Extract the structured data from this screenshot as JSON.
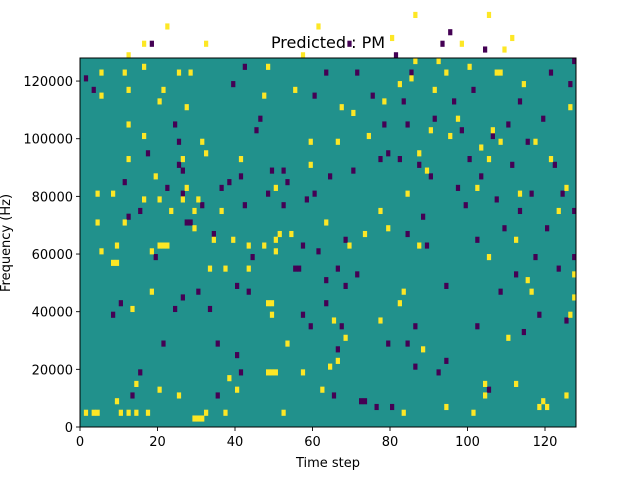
{
  "chart_data": {
    "type": "heatmap",
    "title": "Predicted : PM",
    "xlabel": "Time step",
    "ylabel": "Frequency (Hz)",
    "xlim": [
      0,
      128
    ],
    "ylim": [
      0,
      128000
    ],
    "xticks": [
      0,
      20,
      40,
      60,
      80,
      100,
      120
    ],
    "yticks": [
      0,
      20000,
      40000,
      60000,
      80000,
      100000,
      120000
    ],
    "n_time": 128,
    "n_freq": 64,
    "value_range": [
      -1,
      1
    ],
    "colors": {
      "background": "#21918c",
      "low": "#440154",
      "high": "#fde725"
    },
    "high_cells": [
      [
        1,
        2
      ],
      [
        3,
        2
      ],
      [
        4,
        2
      ],
      [
        4,
        35
      ],
      [
        4,
        40
      ],
      [
        5,
        30
      ],
      [
        5,
        57
      ],
      [
        5,
        61
      ],
      [
        8,
        28
      ],
      [
        8,
        40
      ],
      [
        9,
        4
      ],
      [
        9,
        28
      ],
      [
        9,
        31
      ],
      [
        10,
        2
      ],
      [
        11,
        35
      ],
      [
        11,
        61
      ],
      [
        12,
        2
      ],
      [
        12,
        46
      ],
      [
        12,
        52
      ],
      [
        12,
        58
      ],
      [
        12,
        64
      ],
      [
        13,
        20
      ],
      [
        14,
        7
      ],
      [
        14,
        2
      ],
      [
        16,
        39
      ],
      [
        16,
        50
      ],
      [
        16,
        62
      ],
      [
        16,
        66
      ],
      [
        17,
        2
      ],
      [
        18,
        23
      ],
      [
        18,
        30
      ],
      [
        19,
        43
      ],
      [
        20,
        6
      ],
      [
        20,
        31
      ],
      [
        20,
        39
      ],
      [
        20,
        56
      ],
      [
        21,
        31
      ],
      [
        21,
        58
      ],
      [
        22,
        31
      ],
      [
        22,
        69
      ],
      [
        23,
        37
      ],
      [
        25,
        61
      ],
      [
        25,
        5
      ],
      [
        26,
        46
      ],
      [
        26,
        39
      ],
      [
        27,
        41
      ],
      [
        27,
        55
      ],
      [
        28,
        61
      ],
      [
        29,
        34
      ],
      [
        29,
        37
      ],
      [
        29,
        1
      ],
      [
        30,
        1
      ],
      [
        30,
        39
      ],
      [
        31,
        1
      ],
      [
        31,
        49
      ],
      [
        32,
        2
      ],
      [
        32,
        47
      ],
      [
        32,
        66
      ],
      [
        33,
        27
      ],
      [
        34,
        32
      ],
      [
        36,
        37
      ],
      [
        37,
        27
      ],
      [
        37,
        2
      ],
      [
        38,
        8
      ],
      [
        39,
        32
      ],
      [
        40,
        6
      ],
      [
        41,
        46
      ],
      [
        43,
        27
      ],
      [
        43,
        31
      ],
      [
        47,
        31
      ],
      [
        47,
        57
      ],
      [
        48,
        9
      ],
      [
        48,
        21
      ],
      [
        48,
        62
      ],
      [
        49,
        9
      ],
      [
        49,
        19
      ],
      [
        49,
        21
      ],
      [
        50,
        9
      ],
      [
        50,
        32
      ],
      [
        50,
        30
      ],
      [
        50,
        41
      ],
      [
        51,
        33
      ],
      [
        52,
        2
      ],
      [
        53,
        14
      ],
      [
        54,
        33
      ],
      [
        55,
        58
      ],
      [
        57,
        9
      ],
      [
        57,
        64
      ],
      [
        59,
        49
      ],
      [
        59,
        45
      ],
      [
        61,
        69
      ],
      [
        62,
        6
      ],
      [
        63,
        35
      ],
      [
        64,
        10
      ],
      [
        65,
        18
      ],
      [
        66,
        11
      ],
      [
        66,
        49
      ],
      [
        67,
        55
      ],
      [
        68,
        15
      ],
      [
        69,
        31
      ],
      [
        70,
        54
      ],
      [
        73,
        33
      ],
      [
        74,
        50
      ],
      [
        77,
        18
      ],
      [
        77,
        37
      ],
      [
        78,
        56
      ],
      [
        79,
        34
      ],
      [
        80,
        67
      ],
      [
        82,
        21
      ],
      [
        82,
        59
      ],
      [
        83,
        23
      ],
      [
        83,
        2
      ],
      [
        84,
        40
      ],
      [
        85,
        60
      ],
      [
        86,
        63
      ],
      [
        86,
        71
      ],
      [
        87,
        47
      ],
      [
        87,
        31
      ],
      [
        88,
        13
      ],
      [
        89,
        44
      ],
      [
        90,
        51
      ],
      [
        91,
        58
      ],
      [
        92,
        63
      ],
      [
        94,
        3
      ],
      [
        94,
        61
      ],
      [
        95,
        50
      ],
      [
        97,
        53
      ],
      [
        98,
        66
      ],
      [
        100,
        62
      ],
      [
        101,
        2
      ],
      [
        102,
        41
      ],
      [
        103,
        48
      ],
      [
        104,
        5
      ],
      [
        104,
        7
      ],
      [
        105,
        29
      ],
      [
        105,
        46
      ],
      [
        105,
        71
      ],
      [
        106,
        51
      ],
      [
        107,
        61
      ],
      [
        108,
        49
      ],
      [
        108,
        61
      ],
      [
        109,
        65
      ],
      [
        110,
        15
      ],
      [
        111,
        67
      ],
      [
        112,
        7
      ],
      [
        112,
        32
      ],
      [
        113,
        40
      ],
      [
        114,
        59
      ],
      [
        115,
        25
      ],
      [
        116,
        23
      ],
      [
        117,
        49
      ],
      [
        118,
        3
      ],
      [
        119,
        4
      ],
      [
        120,
        3
      ],
      [
        121,
        46
      ],
      [
        123,
        37
      ],
      [
        125,
        41
      ],
      [
        125,
        5
      ],
      [
        126,
        19
      ],
      [
        126,
        55
      ],
      [
        127,
        22
      ],
      [
        127,
        26
      ]
    ],
    "low_cells": [
      [
        1,
        60
      ],
      [
        3,
        58
      ],
      [
        8,
        19
      ],
      [
        10,
        21
      ],
      [
        11,
        42
      ],
      [
        12,
        36
      ],
      [
        13,
        5
      ],
      [
        15,
        9
      ],
      [
        15,
        37
      ],
      [
        17,
        47
      ],
      [
        18,
        66
      ],
      [
        19,
        29
      ],
      [
        21,
        14
      ],
      [
        22,
        41
      ],
      [
        24,
        52
      ],
      [
        24,
        20
      ],
      [
        25,
        45
      ],
      [
        25,
        49
      ],
      [
        26,
        40
      ],
      [
        26,
        44
      ],
      [
        26,
        22
      ],
      [
        27,
        35
      ],
      [
        28,
        35
      ],
      [
        30,
        23
      ],
      [
        31,
        38
      ],
      [
        33,
        20
      ],
      [
        34,
        33
      ],
      [
        35,
        14
      ],
      [
        35,
        5
      ],
      [
        36,
        41
      ],
      [
        38,
        42
      ],
      [
        39,
        59
      ],
      [
        40,
        12
      ],
      [
        40,
        24
      ],
      [
        41,
        9
      ],
      [
        41,
        43
      ],
      [
        42,
        62
      ],
      [
        42,
        38
      ],
      [
        43,
        23
      ],
      [
        44,
        29
      ],
      [
        45,
        51
      ],
      [
        46,
        53
      ],
      [
        48,
        40
      ],
      [
        49,
        44
      ],
      [
        52,
        38
      ],
      [
        52,
        44
      ],
      [
        53,
        42
      ],
      [
        55,
        27
      ],
      [
        56,
        27
      ],
      [
        57,
        31
      ],
      [
        57,
        19
      ],
      [
        58,
        39
      ],
      [
        59,
        17
      ],
      [
        60,
        40
      ],
      [
        60,
        57
      ],
      [
        61,
        30
      ],
      [
        63,
        21
      ],
      [
        63,
        25
      ],
      [
        63,
        61
      ],
      [
        64,
        43
      ],
      [
        65,
        5
      ],
      [
        66,
        13
      ],
      [
        66,
        27
      ],
      [
        67,
        17
      ],
      [
        68,
        24
      ],
      [
        68,
        32
      ],
      [
        69,
        66
      ],
      [
        70,
        44
      ],
      [
        71,
        26
      ],
      [
        71,
        61
      ],
      [
        72,
        4
      ],
      [
        73,
        4
      ],
      [
        75,
        57
      ],
      [
        76,
        3
      ],
      [
        77,
        46
      ],
      [
        78,
        52
      ],
      [
        79,
        14
      ],
      [
        79,
        47
      ],
      [
        80,
        3
      ],
      [
        81,
        64
      ],
      [
        82,
        46
      ],
      [
        83,
        56
      ],
      [
        84,
        14
      ],
      [
        84,
        33
      ],
      [
        84,
        52
      ],
      [
        85,
        61
      ],
      [
        86,
        10
      ],
      [
        86,
        17
      ],
      [
        87,
        45
      ],
      [
        88,
        36
      ],
      [
        89,
        31
      ],
      [
        90,
        43
      ],
      [
        91,
        53
      ],
      [
        92,
        9
      ],
      [
        93,
        66
      ],
      [
        94,
        11
      ],
      [
        94,
        24
      ],
      [
        95,
        68
      ],
      [
        96,
        56
      ],
      [
        97,
        41
      ],
      [
        98,
        51
      ],
      [
        99,
        38
      ],
      [
        100,
        46
      ],
      [
        101,
        58
      ],
      [
        102,
        17
      ],
      [
        102,
        32
      ],
      [
        103,
        43
      ],
      [
        104,
        65
      ],
      [
        105,
        6
      ],
      [
        106,
        50
      ],
      [
        107,
        39
      ],
      [
        108,
        23
      ],
      [
        109,
        34
      ],
      [
        110,
        52
      ],
      [
        111,
        45
      ],
      [
        112,
        26
      ],
      [
        113,
        37
      ],
      [
        113,
        56
      ],
      [
        114,
        16
      ],
      [
        115,
        49
      ],
      [
        116,
        40
      ],
      [
        117,
        29
      ],
      [
        118,
        19
      ],
      [
        119,
        53
      ],
      [
        120,
        34
      ],
      [
        121,
        61
      ],
      [
        122,
        45
      ],
      [
        123,
        27
      ],
      [
        124,
        40
      ],
      [
        125,
        18
      ],
      [
        126,
        59
      ],
      [
        127,
        29
      ],
      [
        127,
        37
      ],
      [
        127,
        63
      ]
    ]
  }
}
